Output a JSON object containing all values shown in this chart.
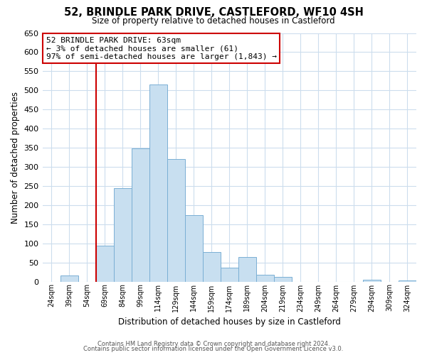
{
  "title": "52, BRINDLE PARK DRIVE, CASTLEFORD, WF10 4SH",
  "subtitle": "Size of property relative to detached houses in Castleford",
  "xlabel": "Distribution of detached houses by size in Castleford",
  "ylabel": "Number of detached properties",
  "bin_labels": [
    "24sqm",
    "39sqm",
    "54sqm",
    "69sqm",
    "84sqm",
    "99sqm",
    "114sqm",
    "129sqm",
    "144sqm",
    "159sqm",
    "174sqm",
    "189sqm",
    "204sqm",
    "219sqm",
    "234sqm",
    "249sqm",
    "264sqm",
    "279sqm",
    "294sqm",
    "309sqm",
    "324sqm"
  ],
  "bar_values": [
    0,
    15,
    0,
    93,
    245,
    348,
    515,
    320,
    173,
    78,
    37,
    65,
    18,
    12,
    0,
    0,
    0,
    0,
    5,
    0,
    3
  ],
  "bar_color": "#c8dff0",
  "bar_edge_color": "#7aafd4",
  "vline_x_index": 3,
  "vline_color": "#cc0000",
  "ylim": [
    0,
    650
  ],
  "yticks": [
    0,
    50,
    100,
    150,
    200,
    250,
    300,
    350,
    400,
    450,
    500,
    550,
    600,
    650
  ],
  "annotation_text": "52 BRINDLE PARK DRIVE: 63sqm\n← 3% of detached houses are smaller (61)\n97% of semi-detached houses are larger (1,843) →",
  "annotation_box_color": "#ffffff",
  "annotation_box_edge": "#cc0000",
  "footer1": "Contains HM Land Registry data © Crown copyright and database right 2024.",
  "footer2": "Contains public sector information licensed under the Open Government Licence v3.0.",
  "bg_color": "#ffffff",
  "grid_color": "#ccdded"
}
